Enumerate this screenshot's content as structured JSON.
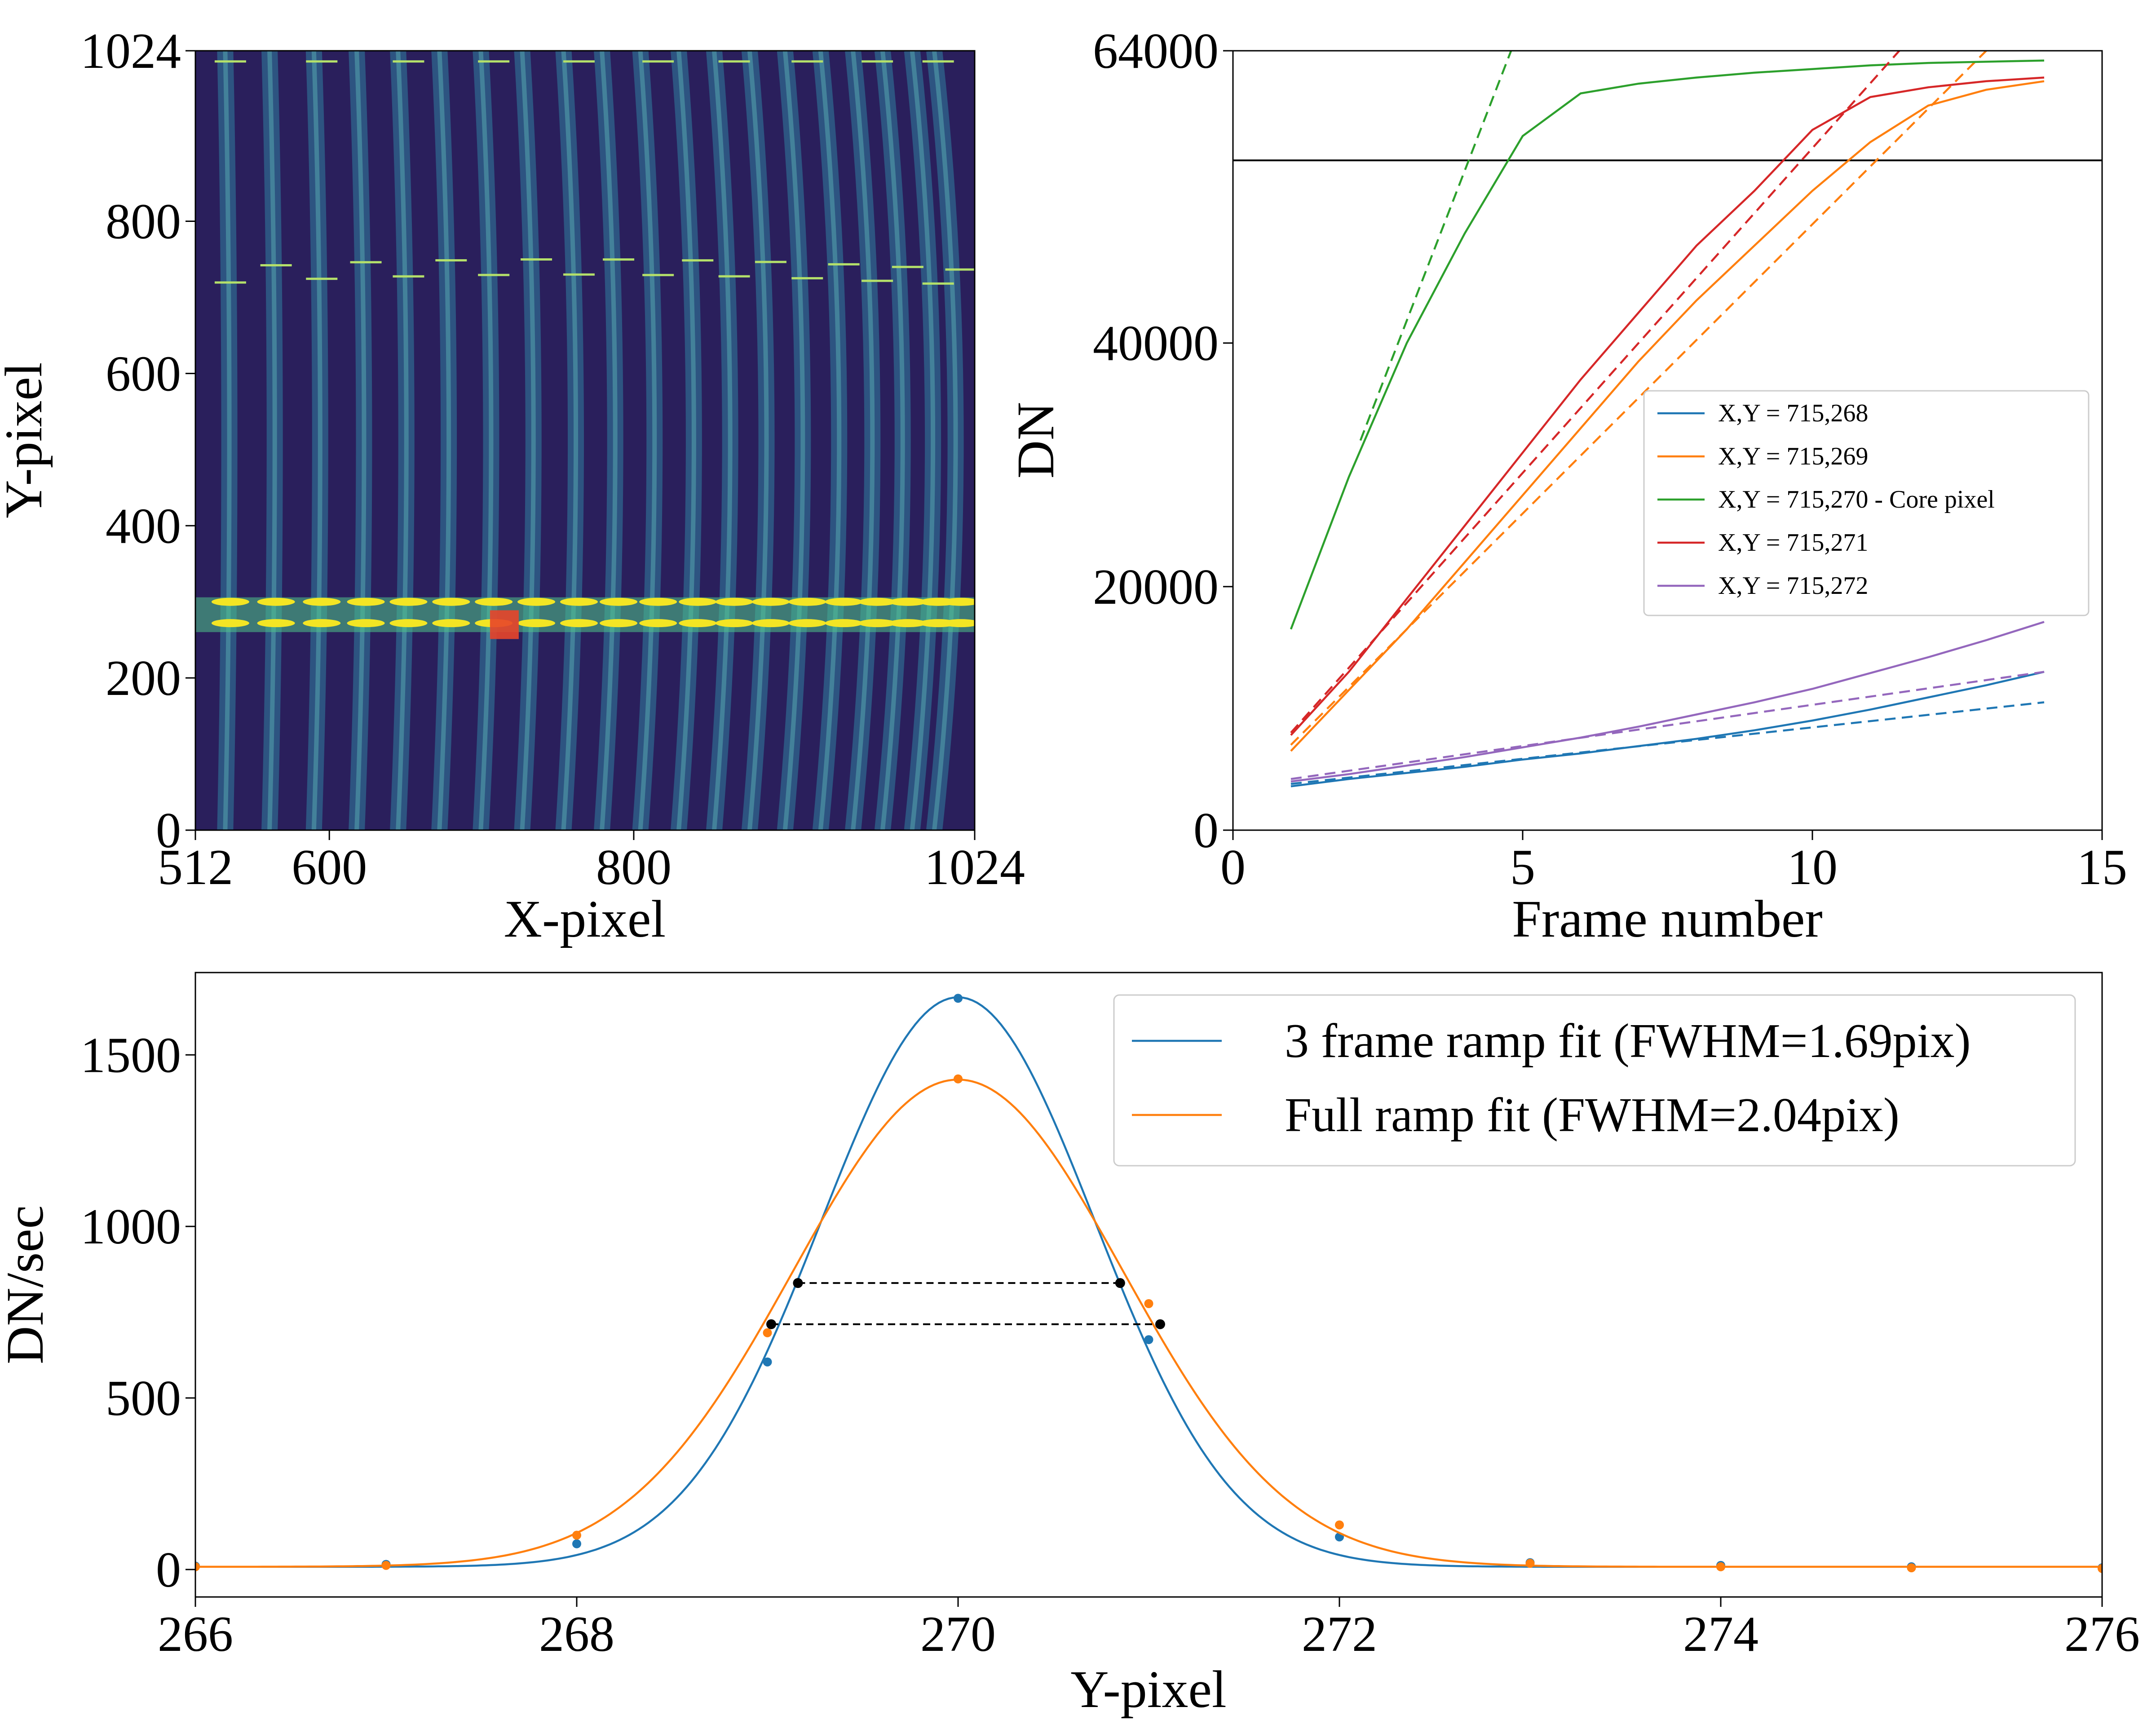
{
  "figure": {
    "panel_count": 3
  },
  "chart_data": [
    {
      "id": "detector_image",
      "type": "heatmap",
      "title": "",
      "xlabel": "X-pixel",
      "ylabel": "Y-pixel",
      "xlim": [
        512,
        1024
      ],
      "ylim": [
        0,
        1024
      ],
      "x_ticks": [
        512,
        600,
        800,
        1024
      ],
      "y_ticks": [
        0,
        200,
        400,
        600,
        800,
        1024
      ],
      "x_tick_labels": [
        "512",
        "600",
        "800",
        "1024"
      ],
      "y_tick_labels": [
        "0",
        "200",
        "400",
        "600",
        "800",
        "1024"
      ],
      "colormap": "viridis",
      "stripe_centers_x": [
        535,
        565,
        595,
        624,
        652,
        680,
        708,
        736,
        764,
        790,
        816,
        842,
        866,
        890,
        914,
        938,
        960,
        980,
        1000,
        1015
      ],
      "bright_band_y": [
        272,
        285,
        300
      ],
      "upper_line_y": [
        730,
        750,
        1010
      ],
      "marker": {
        "x": 715,
        "y": 270,
        "color": "#e8452a"
      },
      "colors": {
        "background": "#2a1f5c",
        "stripe": "#2f7fa0",
        "saturated": "#f3e524",
        "band_glow": "#4ec48a"
      }
    },
    {
      "id": "ramp_plot",
      "type": "line",
      "title": "",
      "xlabel": "Frame number",
      "ylabel": "DN",
      "xlim": [
        0,
        15
      ],
      "ylim": [
        0,
        64000
      ],
      "x_ticks": [
        0,
        5,
        10,
        15
      ],
      "y_ticks": [
        0,
        20000,
        40000,
        64000
      ],
      "x_tick_labels": [
        "0",
        "5",
        "10",
        "15"
      ],
      "y_tick_labels": [
        "0",
        "20000",
        "40000",
        "64000"
      ],
      "hline": 55000,
      "legend_position": "center-right",
      "series": [
        {
          "name": "X,Y = 715,268",
          "color": "#1f77b4",
          "x": [
            1,
            2,
            3,
            4,
            5,
            6,
            7,
            8,
            9,
            10,
            11,
            12,
            13,
            14
          ],
          "values": [
            3600,
            4200,
            4700,
            5200,
            5800,
            6300,
            6900,
            7500,
            8200,
            9000,
            9900,
            10900,
            11900,
            13000
          ],
          "fit": {
            "x": [
              1,
              14
            ],
            "values": [
              3800,
              10500
            ]
          }
        },
        {
          "name": "X,Y = 715,269",
          "color": "#ff7f0e",
          "x": [
            1,
            2,
            3,
            4,
            5,
            6,
            7,
            8,
            9,
            10,
            11,
            12,
            13,
            14
          ],
          "values": [
            6500,
            11500,
            16500,
            22000,
            27500,
            33000,
            38500,
            43500,
            48000,
            52500,
            56500,
            59500,
            60800,
            61500
          ],
          "fit": {
            "x": [
              1,
              13
            ],
            "values": [
              7000,
              64000
            ]
          }
        },
        {
          "name": "X,Y = 715,270 - Core pixel",
          "color": "#2ca02c",
          "x": [
            1,
            2,
            3,
            4,
            5,
            6,
            7,
            8,
            9,
            10,
            11,
            12,
            13,
            14
          ],
          "values": [
            16500,
            29000,
            40000,
            49000,
            57000,
            60500,
            61300,
            61800,
            62200,
            62500,
            62800,
            63000,
            63100,
            63200
          ],
          "fit": {
            "x": [
              2.2,
              4.8
            ],
            "values": [
              32000,
              64000
            ]
          }
        },
        {
          "name": "X,Y = 715,271",
          "color": "#d62728",
          "x": [
            1,
            2,
            3,
            4,
            5,
            6,
            7,
            8,
            9,
            10,
            11,
            12,
            13,
            14
          ],
          "values": [
            7800,
            13000,
            19000,
            25000,
            31000,
            37000,
            42500,
            48000,
            52500,
            57500,
            60200,
            61000,
            61500,
            61800
          ],
          "fit": {
            "x": [
              1,
              11.5
            ],
            "values": [
              8000,
              64000
            ]
          }
        },
        {
          "name": "X,Y = 715,272",
          "color": "#9467bd",
          "x": [
            1,
            2,
            3,
            4,
            5,
            6,
            7,
            8,
            9,
            10,
            11,
            12,
            13,
            14
          ],
          "values": [
            4000,
            4600,
            5300,
            6000,
            6800,
            7600,
            8500,
            9500,
            10500,
            11600,
            12900,
            14200,
            15600,
            17100
          ],
          "fit": {
            "x": [
              1,
              14
            ],
            "values": [
              4200,
              13000
            ]
          }
        }
      ]
    },
    {
      "id": "profile_plot",
      "type": "line",
      "title": "",
      "xlabel": "Y-pixel",
      "ylabel": "DN/sec",
      "xlim": [
        266,
        276
      ],
      "ylim": [
        -80,
        1740
      ],
      "x_ticks": [
        266,
        268,
        270,
        272,
        274,
        276
      ],
      "y_ticks": [
        0,
        500,
        1000,
        1500
      ],
      "x_tick_labels": [
        "266",
        "268",
        "270",
        "272",
        "274",
        "276"
      ],
      "y_tick_labels": [
        "0",
        "500",
        "1000",
        "1500"
      ],
      "legend_position": "top-right",
      "series": [
        {
          "name": "3 frame ramp fit (FWHM=1.69pix)",
          "color": "#1f77b4",
          "x": [
            266,
            267,
            268,
            269,
            270,
            271,
            272,
            273,
            274,
            275,
            276
          ],
          "values": [
            10,
            15,
            75,
            605,
            1665,
            670,
            95,
            20,
            12,
            8,
            5
          ],
          "gauss": {
            "amp": 1660,
            "mu": 270,
            "sigma": 0.718,
            "base": 8
          },
          "half_max": {
            "y": 835,
            "x_left": 269.16,
            "x_right": 270.85
          }
        },
        {
          "name": "Full ramp fit (FWHM=2.04pix)",
          "color": "#ff7f0e",
          "x": [
            266,
            267,
            268,
            269,
            270,
            271,
            272,
            273,
            274,
            275,
            276
          ],
          "values": [
            8,
            12,
            100,
            690,
            1430,
            775,
            130,
            18,
            8,
            5,
            3
          ],
          "gauss": {
            "amp": 1420,
            "mu": 270,
            "sigma": 0.866,
            "base": 8
          },
          "half_max": {
            "y": 715,
            "x_left": 269.02,
            "x_right": 271.06
          }
        }
      ]
    }
  ]
}
